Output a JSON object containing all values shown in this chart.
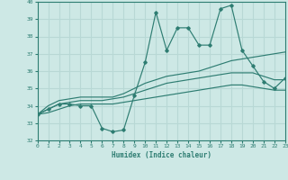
{
  "xlabel": "Humidex (Indice chaleur)",
  "ylabel": "",
  "bg_color": "#cde8e5",
  "line_color": "#2e7d72",
  "grid_color": "#b8d8d5",
  "xlim": [
    0,
    23
  ],
  "ylim": [
    32,
    40
  ],
  "yticks": [
    32,
    33,
    34,
    35,
    36,
    37,
    38,
    39,
    40
  ],
  "xticks": [
    0,
    1,
    2,
    3,
    4,
    5,
    6,
    7,
    8,
    9,
    10,
    11,
    12,
    13,
    14,
    15,
    16,
    17,
    18,
    19,
    20,
    21,
    22,
    23
  ],
  "main_series": [
    33.5,
    33.8,
    34.1,
    34.1,
    34.0,
    34.0,
    32.7,
    32.5,
    32.6,
    34.6,
    36.5,
    39.4,
    37.2,
    38.5,
    38.5,
    37.5,
    37.5,
    39.6,
    39.8,
    37.2,
    36.3,
    35.4,
    35.0,
    35.6
  ],
  "line1": [
    33.5,
    34.0,
    34.3,
    34.4,
    34.5,
    34.5,
    34.5,
    34.5,
    34.7,
    35.0,
    35.3,
    35.5,
    35.7,
    35.8,
    35.9,
    36.0,
    36.2,
    36.4,
    36.6,
    36.7,
    36.8,
    36.9,
    37.0,
    37.1
  ],
  "line2": [
    33.5,
    33.8,
    34.1,
    34.2,
    34.3,
    34.3,
    34.3,
    34.4,
    34.5,
    34.7,
    34.9,
    35.1,
    35.3,
    35.4,
    35.5,
    35.6,
    35.7,
    35.8,
    35.9,
    35.9,
    35.9,
    35.7,
    35.5,
    35.5
  ],
  "line3": [
    33.5,
    33.6,
    33.8,
    34.0,
    34.1,
    34.1,
    34.1,
    34.1,
    34.2,
    34.3,
    34.4,
    34.5,
    34.6,
    34.7,
    34.8,
    34.9,
    35.0,
    35.1,
    35.2,
    35.2,
    35.1,
    35.0,
    34.9,
    34.9
  ]
}
